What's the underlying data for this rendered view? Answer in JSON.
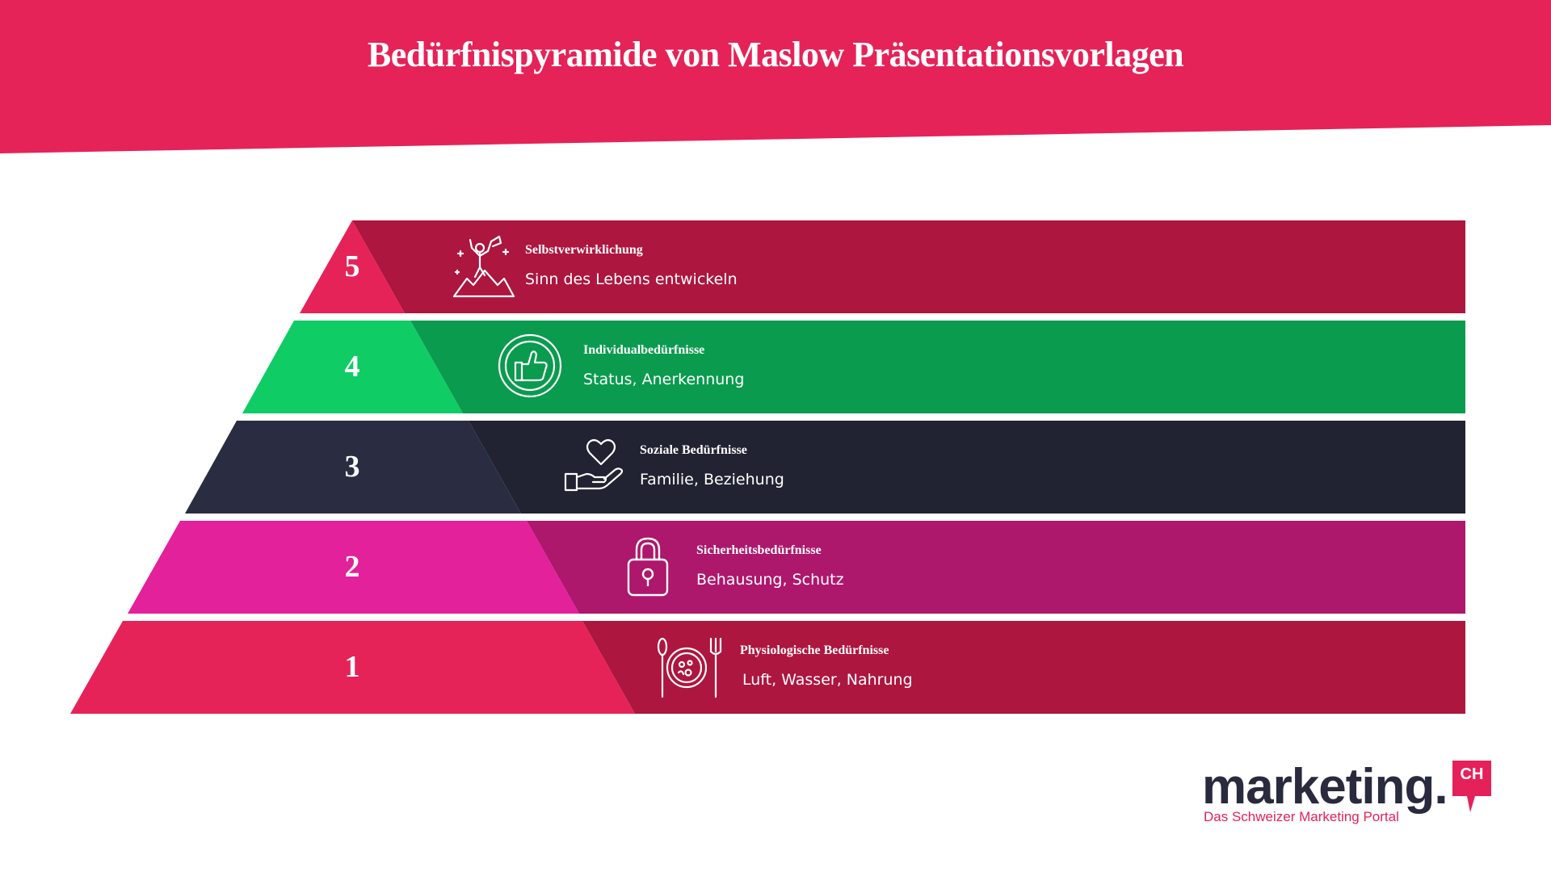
{
  "title": "Bedürfnispyramide von Maslow Präsentationsvorlagen",
  "colors": {
    "banner": "#e52358",
    "background": "#ffffff"
  },
  "levels": [
    {
      "number": "5",
      "title": "Selbstverwirklichung",
      "description": "Sinn des Lebens entwickeln",
      "icon": "mountain-climber-icon",
      "light_color": "#e52358",
      "dark_color": "#ad163e"
    },
    {
      "number": "4",
      "title": "Individualbedürfnisse",
      "description": "Status, Anerkennung",
      "icon": "thumbs-up-badge-icon",
      "light_color": "#10cc65",
      "dark_color": "#0a9b4e"
    },
    {
      "number": "3",
      "title": "Soziale Bedürfnisse",
      "description": "Familie, Beziehung",
      "icon": "heart-in-hand-icon",
      "light_color": "#2a2d42",
      "dark_color": "#212332"
    },
    {
      "number": "2",
      "title": "Sicherheitsbedürfnisse",
      "description": "Behausung, Schutz",
      "icon": "padlock-icon",
      "light_color": "#e2219b",
      "dark_color": "#ad176c"
    },
    {
      "number": "1",
      "title": "Physiologische Bedürfnisse",
      "description": "Luft, Wasser, Nahrung",
      "icon": "plate-cutlery-icon",
      "light_color": "#e52358",
      "dark_color": "#ad163e"
    }
  ],
  "logo": {
    "wordmark": "marketing.",
    "badge": "CH",
    "tagline": "Das Schweizer Marketing Portal"
  }
}
